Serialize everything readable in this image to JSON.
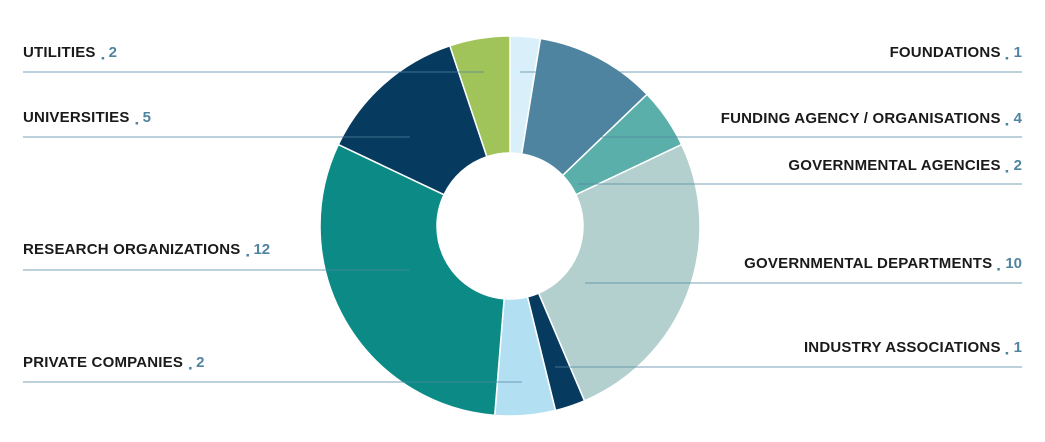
{
  "chart_data": {
    "type": "donut",
    "categories": [
      "FOUNDATIONS",
      "FUNDING AGENCY / ORGANISATIONS",
      "GOVERNMENTAL AGENCIES",
      "GOVERNMENTAL DEPARTMENTS",
      "INDUSTRY ASSOCIATIONS",
      "PRIVATE COMPANIES",
      "RESEARCH ORGANIZATIONS",
      "UNIVERSITIES",
      "UTILITIES"
    ],
    "values": [
      1,
      4,
      2,
      10,
      1,
      2,
      12,
      5,
      2
    ],
    "colors": [
      "#d9eff9",
      "#4f84a0",
      "#5aafaa",
      "#b3d0cf",
      "#063a5e",
      "#b3dff3",
      "#0c8b86",
      "#063a5e",
      "#a0c35a"
    ]
  }
}
